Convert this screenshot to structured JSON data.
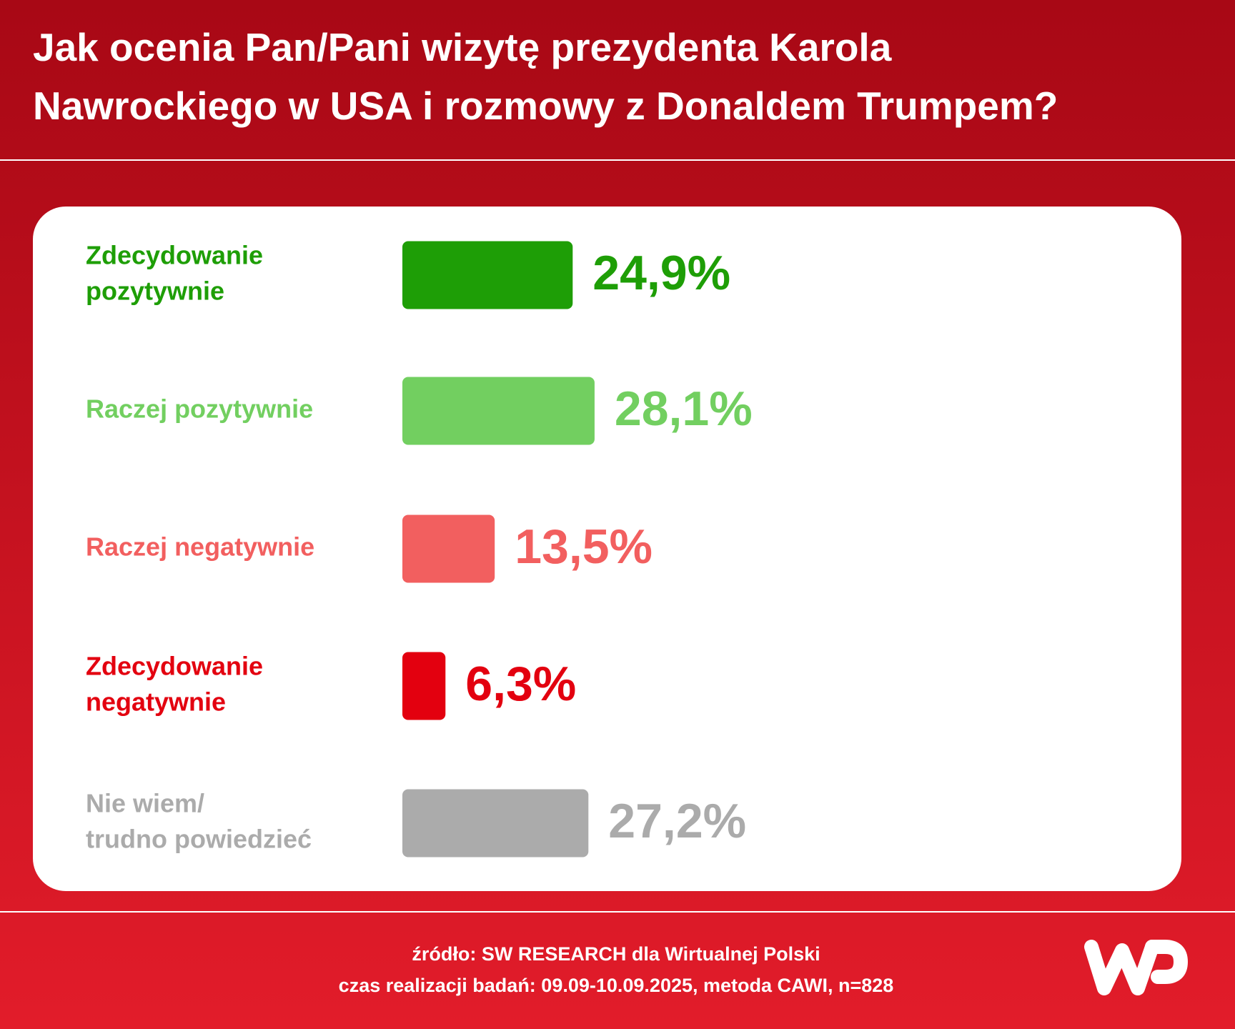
{
  "chart_data": {
    "type": "bar",
    "orientation": "horizontal",
    "title": "Jak ocenia Pan/Pani wizytę prezydenta Karola Nawrockiego w USA i rozmowy z Donaldem Trumpem?",
    "categories": [
      [
        "Zdecydowanie",
        "pozytywnie"
      ],
      [
        "Raczej pozytywnie"
      ],
      [
        "Raczej negatywnie"
      ],
      [
        "Zdecydowanie",
        "negatywnie"
      ],
      [
        "Nie wiem/",
        "trudno powiedzieć"
      ]
    ],
    "values": [
      24.9,
      28.1,
      13.5,
      6.3,
      27.2
    ],
    "value_labels": [
      "24,9%",
      "28,1%",
      "13,5%",
      "6,3%",
      "27,2%"
    ],
    "colors": [
      "#1e9e06",
      "#72cf60",
      "#f25f5f",
      "#e3000f",
      "#ababab"
    ],
    "source": [
      "źródło: SW RESEARCH dla Wirtualnej Polski",
      "czas realizacji badań: 09.09-10.09.2025, metoda CAWI, n=828"
    ]
  }
}
